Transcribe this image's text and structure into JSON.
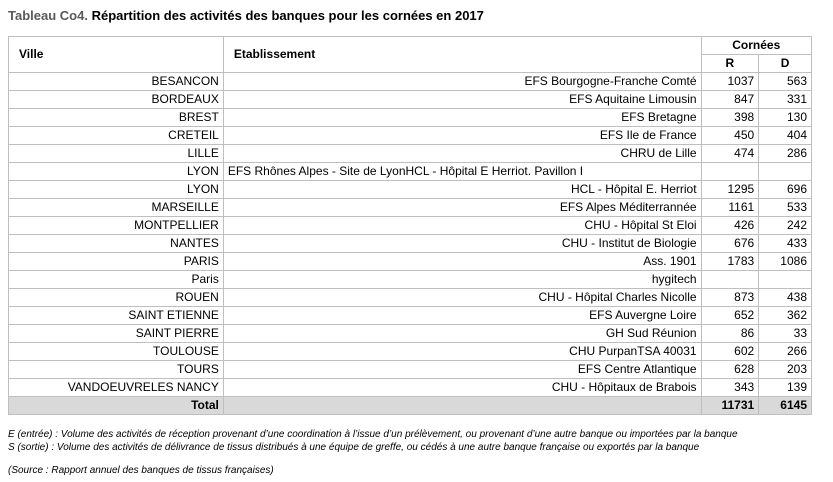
{
  "title": {
    "code": "Tableau Co4.",
    "text": "Répartition des activités des banques pour les cornées en 2017"
  },
  "table": {
    "headers": {
      "ville": "Ville",
      "etablissement": "Etablissement",
      "group": "Cornées",
      "r": "R",
      "d": "D"
    },
    "rows": [
      {
        "ville": "BESANCON",
        "etablissement": "EFS Bourgogne-Franche Comté",
        "r": "1037",
        "d": "563"
      },
      {
        "ville": "BORDEAUX",
        "etablissement": "EFS Aquitaine Limousin",
        "r": "847",
        "d": "331"
      },
      {
        "ville": "BREST",
        "etablissement": "EFS Bretagne",
        "r": "398",
        "d": "130"
      },
      {
        "ville": "CRETEIL",
        "etablissement": "EFS Ile de France",
        "r": "450",
        "d": "404"
      },
      {
        "ville": "LILLE",
        "etablissement": "CHRU de Lille",
        "r": "474",
        "d": "286"
      },
      {
        "ville": "LYON",
        "etablissement": "EFS Rhônes Alpes - Site de LyonHCL - Hôpital E Herriot. Pavillon I",
        "r": "",
        "d": "",
        "align": "left"
      },
      {
        "ville": "LYON",
        "etablissement": "HCL - Hôpital E. Herriot",
        "r": "1295",
        "d": "696"
      },
      {
        "ville": "MARSEILLE",
        "etablissement": "EFS Alpes Méditerrannée",
        "r": "1161",
        "d": "533"
      },
      {
        "ville": "MONTPELLIER",
        "etablissement": "CHU - Hôpital St Eloi",
        "r": "426",
        "d": "242"
      },
      {
        "ville": "NANTES",
        "etablissement": "CHU - Institut de Biologie",
        "r": "676",
        "d": "433"
      },
      {
        "ville": "PARIS",
        "etablissement": "Ass. 1901",
        "r": "1783",
        "d": "1086"
      },
      {
        "ville": "Paris",
        "etablissement": "hygitech",
        "r": "",
        "d": ""
      },
      {
        "ville": "ROUEN",
        "etablissement": "CHU - Hôpital Charles Nicolle",
        "r": "873",
        "d": "438"
      },
      {
        "ville": "SAINT ETIENNE",
        "etablissement": "EFS Auvergne Loire",
        "r": "652",
        "d": "362"
      },
      {
        "ville": "SAINT PIERRE",
        "etablissement": "GH Sud Réunion",
        "r": "86",
        "d": "33"
      },
      {
        "ville": "TOULOUSE",
        "etablissement": "CHU PurpanTSA 40031",
        "r": "602",
        "d": "266"
      },
      {
        "ville": "TOURS",
        "etablissement": "EFS Centre Atlantique",
        "r": "628",
        "d": "203"
      },
      {
        "ville": "VANDOEUVRELES NANCY",
        "etablissement": "CHU - Hôpitaux de Brabois",
        "r": "343",
        "d": "139"
      }
    ],
    "total": {
      "label": "Total",
      "r": "11731",
      "d": "6145"
    }
  },
  "notes": {
    "entree": "E (entrée) : Volume des activités de réception provenant d’une coordination à l’issue d’un prélèvement, ou provenant d’une autre banque ou importées par la banque",
    "sortie": "S (sortie) : Volume des activités de délivrance de tissus distribués à une équipe de greffe, ou cédés à une autre banque française ou exportés par la banque"
  },
  "source": "(Source : Rapport annuel des banques de tissus françaises)"
}
